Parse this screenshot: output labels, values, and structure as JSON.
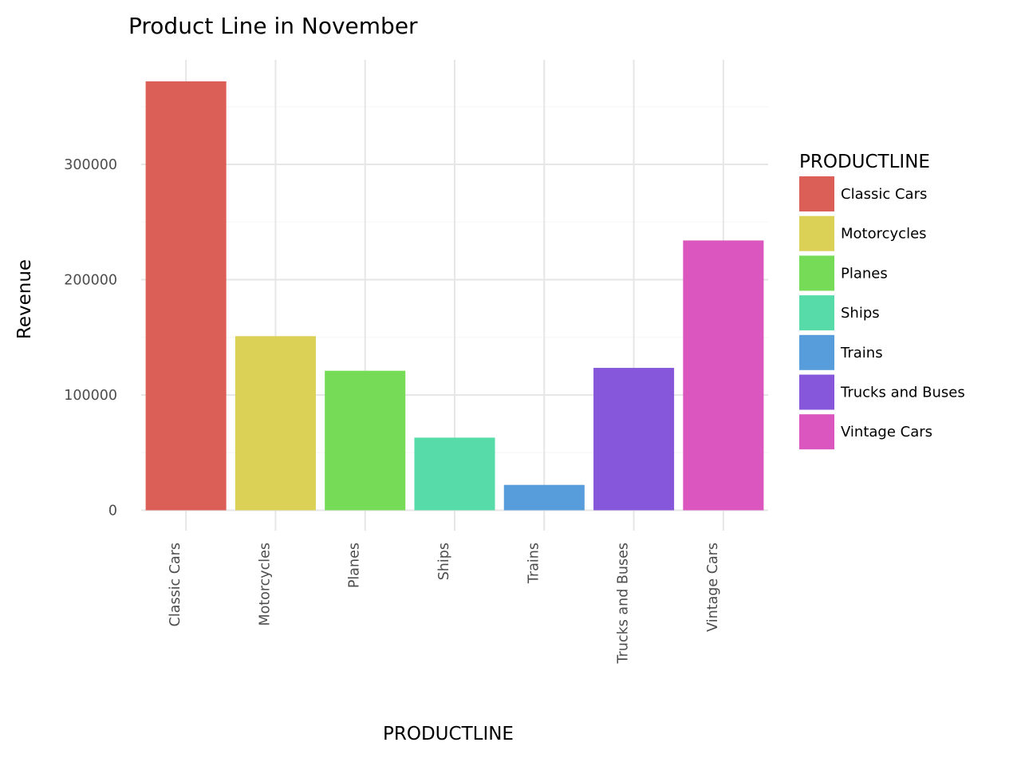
{
  "chart_data": {
    "type": "bar",
    "title": "Product Line in November",
    "xlabel": "PRODUCTLINE",
    "ylabel": "Revenue",
    "categories": [
      "Classic Cars",
      "Motorcycles",
      "Planes",
      "Ships",
      "Trains",
      "Trucks and Buses",
      "Vintage Cars"
    ],
    "values": [
      372000,
      151000,
      121000,
      63000,
      22000,
      123500,
      234000
    ],
    "ylim": [
      0,
      390000
    ],
    "yticks": [
      0,
      100000,
      200000,
      300000
    ],
    "ytick_labels": [
      "0",
      "100000",
      "200000",
      "300000"
    ],
    "grid": true,
    "legend": {
      "title": "PRODUCTLINE",
      "placement": "right",
      "entries": [
        "Classic Cars",
        "Motorcycles",
        "Planes",
        "Ships",
        "Trains",
        "Trucks and Buses",
        "Vintage Cars"
      ]
    },
    "colors": [
      "#db5f57",
      "#dbd157",
      "#76db57",
      "#57dba9",
      "#579ddb",
      "#8657db",
      "#db57bf"
    ]
  }
}
